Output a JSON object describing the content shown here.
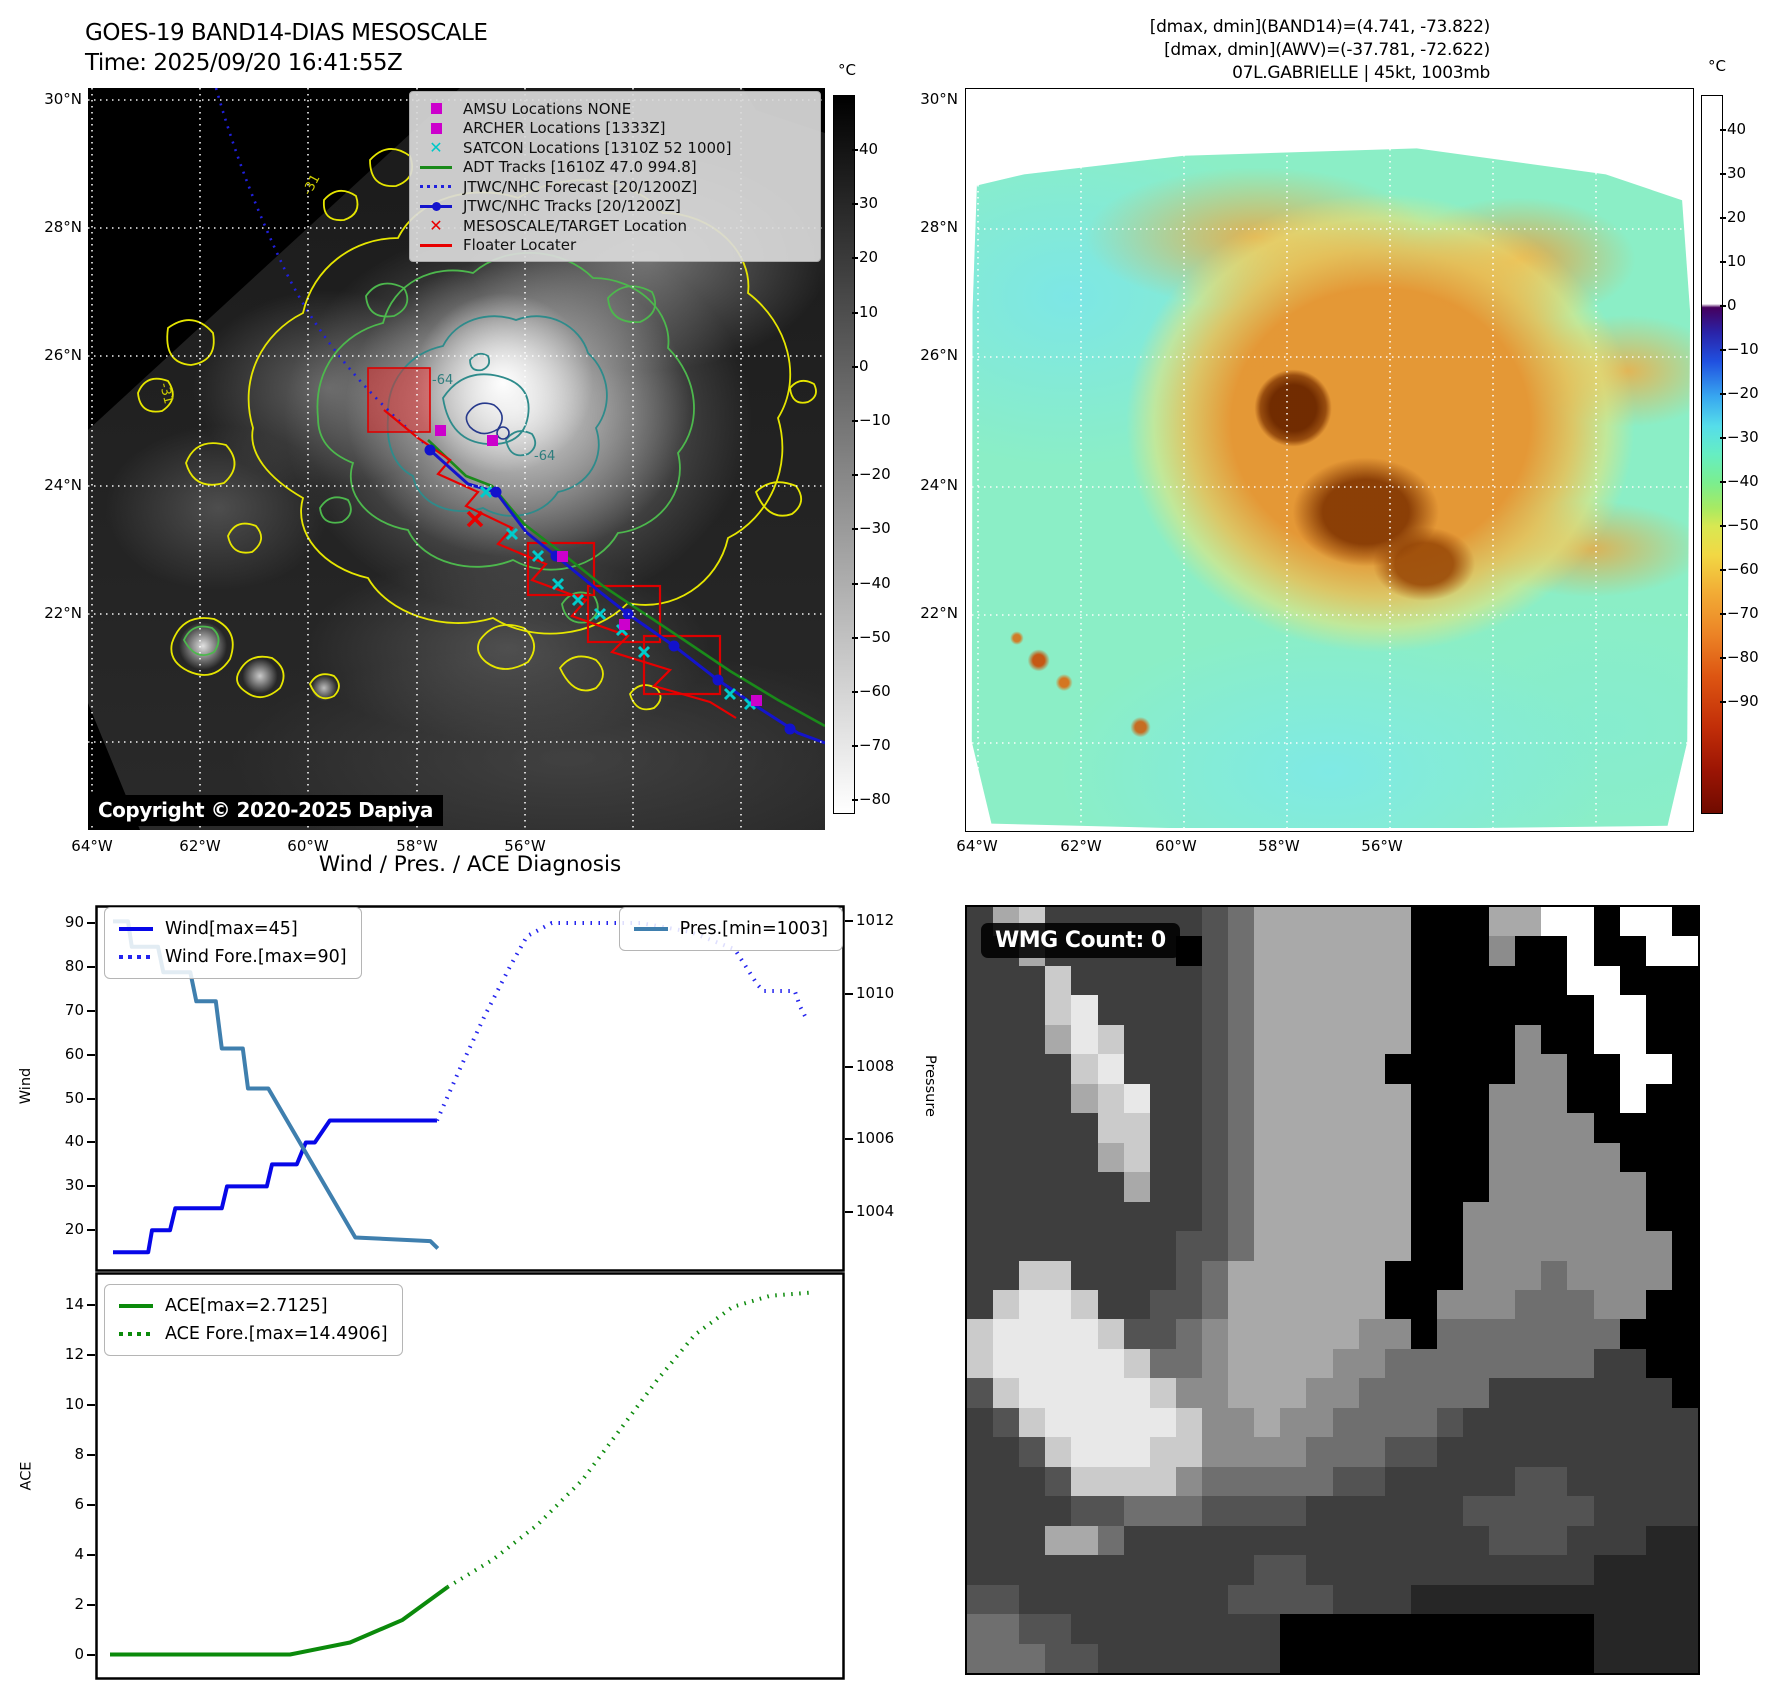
{
  "panel1": {
    "title_line1": "GOES-19 BAND14-DIAS MESOSCALE",
    "title_line2": "Time: 2025/09/20 16:41:55Z",
    "copyright": "Copyright © 2020-2025 Dapiya",
    "legend": [
      {
        "symbol": "square",
        "color": "#cc00cc",
        "label": "AMSU Locations NONE"
      },
      {
        "symbol": "square",
        "color": "#cc00cc",
        "label": "ARCHER Locations [1333Z]"
      },
      {
        "symbol": "cross",
        "color": "#00c8c8",
        "label": "SATCON Locations [1310Z 52 1000]"
      },
      {
        "symbol": "line",
        "color": "#1a8a1a",
        "label": "ADT Tracks [1610Z 47.0 994.8]"
      },
      {
        "symbol": "dotted",
        "color": "#2020dd",
        "label": "JTWC/NHC Forecast [20/1200Z]"
      },
      {
        "symbol": "line-dot",
        "color": "#1414cc",
        "label": "JTWC/NHC Tracks [20/1200Z]"
      },
      {
        "symbol": "cross",
        "color": "#e80000",
        "label": "MESOSCALE/TARGET Location"
      },
      {
        "symbol": "line",
        "color": "#e80000",
        "label": "Floater Locater"
      }
    ],
    "lat_labels": [
      "30°N",
      "28°N",
      "26°N",
      "24°N",
      "22°N"
    ],
    "lon_labels": [
      "64°W",
      "62°W",
      "60°W",
      "58°W",
      "56°W"
    ],
    "contour_labels": {
      "outer": "-31",
      "inner": "-64"
    },
    "colorbar": {
      "unit": "°C",
      "ticks": [
        "40",
        "30",
        "20",
        "10",
        "0",
        "−10",
        "−20",
        "−30",
        "−40",
        "−50",
        "−60",
        "−70",
        "−80"
      ],
      "gradient": [
        [
          "#000000",
          0
        ],
        [
          "#151515",
          8
        ],
        [
          "#f5f5f5",
          96
        ],
        [
          "#ffffff",
          100
        ]
      ]
    }
  },
  "panel2": {
    "annot_line1": "[dmax, dmin](BAND14)=(4.741, -73.822)",
    "annot_line2": "[dmax, dmin](AWV)=(-37.781, -72.622)",
    "annot_line3": "07L.GABRIELLE | 45kt, 1003mb",
    "lat_labels": [
      "30°N",
      "28°N",
      "26°N",
      "24°N",
      "22°N"
    ],
    "lon_labels": [
      "64°W",
      "62°W",
      "60°W",
      "58°W",
      "56°W"
    ],
    "colorbar": {
      "unit": "°C",
      "ticks": [
        "40",
        "30",
        "20",
        "10",
        "0",
        "−10",
        "−20",
        "−30",
        "−40",
        "−50",
        "−60",
        "−70",
        "−80",
        "−90"
      ],
      "gradient": [
        [
          "#ffffff",
          0
        ],
        [
          "#ffffff",
          29
        ],
        [
          "#45005e",
          29.5
        ],
        [
          "#2a23a8",
          33
        ],
        [
          "#2050e0",
          37
        ],
        [
          "#38a8f0",
          42
        ],
        [
          "#55ddea",
          46
        ],
        [
          "#66eec2",
          50
        ],
        [
          "#7bee8e",
          54
        ],
        [
          "#a8ea62",
          57.5
        ],
        [
          "#d8e852",
          60
        ],
        [
          "#f2d844",
          64
        ],
        [
          "#f2ae36",
          69
        ],
        [
          "#ec8426",
          75
        ],
        [
          "#dd5512",
          81
        ],
        [
          "#c22e08",
          88
        ],
        [
          "#9c1504",
          94
        ],
        [
          "#700b00",
          100
        ]
      ]
    }
  },
  "chart_data": [
    {
      "type": "line",
      "title": "Wind / Pres. / ACE Diagnosis",
      "ylabel_left": "Wind",
      "ylabel_right": "Pressure",
      "y_ticks_left": [
        90,
        80,
        70,
        60,
        50,
        40,
        30,
        20
      ],
      "y_ticks_right": [
        1012,
        1010,
        1008,
        1006,
        1004
      ],
      "ylim_left": [
        10.5,
        94.1
      ],
      "ylim_right": [
        1002.35,
        1012.45
      ],
      "xlim": [
        0,
        1
      ],
      "grid": false,
      "series": [
        {
          "name": "Wind[max=45]",
          "style": "solid",
          "color": "#0707e8",
          "axis": "left",
          "points": [
            [
              0.024,
              15
            ],
            [
              0.071,
              15
            ],
            [
              0.076,
              20
            ],
            [
              0.1,
              20
            ],
            [
              0.107,
              25
            ],
            [
              0.169,
              25
            ],
            [
              0.176,
              30
            ],
            [
              0.229,
              30
            ],
            [
              0.236,
              35
            ],
            [
              0.269,
              35
            ],
            [
              0.281,
              40
            ],
            [
              0.293,
              40
            ],
            [
              0.313,
              45
            ],
            [
              0.456,
              45
            ]
          ]
        },
        {
          "name": "Wind Fore.[max=90]",
          "style": "dotted",
          "color": "#2424ee",
          "axis": "left",
          "points": [
            [
              0.456,
              45
            ],
            [
              0.487,
              57
            ],
            [
              0.52,
              69
            ],
            [
              0.553,
              80
            ],
            [
              0.576,
              87
            ],
            [
              0.609,
              90
            ],
            [
              0.727,
              90
            ],
            [
              0.793,
              88
            ],
            [
              0.853,
              84
            ],
            [
              0.883,
              76
            ],
            [
              0.891,
              74.5
            ],
            [
              0.933,
              74.5
            ],
            [
              0.94,
              71
            ],
            [
              0.949,
              68
            ]
          ]
        },
        {
          "name": "Pres.[min=1003]",
          "style": "solid",
          "color": "#3f7fae",
          "axis": "right",
          "points": [
            [
              0.024,
              1012
            ],
            [
              0.044,
              1012
            ],
            [
              0.049,
              1011.3
            ],
            [
              0.084,
              1011.3
            ],
            [
              0.091,
              1010.6
            ],
            [
              0.127,
              1010.6
            ],
            [
              0.135,
              1009.8
            ],
            [
              0.161,
              1009.8
            ],
            [
              0.169,
              1008.5
            ],
            [
              0.197,
              1008.5
            ],
            [
              0.204,
              1007.4
            ],
            [
              0.231,
              1007.4
            ],
            [
              0.347,
              1003.3
            ],
            [
              0.447,
              1003.2
            ],
            [
              0.457,
              1003
            ]
          ]
        }
      ]
    },
    {
      "type": "line",
      "ylabel_left": "ACE",
      "y_ticks_left": [
        14,
        12,
        10,
        8,
        6,
        4,
        2,
        0
      ],
      "ylim_left": [
        -1.0,
        15.3
      ],
      "xlim": [
        0,
        1
      ],
      "grid": false,
      "series": [
        {
          "name": "ACE[max=2.7125]",
          "style": "solid",
          "color": "#0b8a0b",
          "axis": "left",
          "points": [
            [
              0.02,
              0.02
            ],
            [
              0.26,
              0.02
            ],
            [
              0.34,
              0.5
            ],
            [
              0.41,
              1.4
            ],
            [
              0.47,
              2.71
            ]
          ]
        },
        {
          "name": "ACE Fore.[max=14.4906]",
          "style": "dotted",
          "color": "#0b8a0b",
          "axis": "left",
          "points": [
            [
              0.47,
              2.71
            ],
            [
              0.53,
              3.8
            ],
            [
              0.59,
              5.2
            ],
            [
              0.65,
              7.0
            ],
            [
              0.7,
              9.0
            ],
            [
              0.75,
              11.0
            ],
            [
              0.8,
              12.8
            ],
            [
              0.85,
              13.9
            ],
            [
              0.9,
              14.35
            ],
            [
              0.96,
              14.49
            ]
          ]
        }
      ]
    }
  ],
  "wmg": {
    "count_label": "WMG Count: 0",
    "palette": {
      "k": "#000000",
      "1": "#262626",
      "2": "#3e3e3e",
      "3": "#535353",
      "4": "#6f6f6f",
      "5": "#8c8c8c",
      "6": "#a9a9a9",
      "7": "#cbcbcb",
      "8": "#e8e8e8",
      "w": "#ffffff"
    },
    "pixel_rows": [
      "26722222234666666kkk66wwkwwk",
      "22622222k34666666kkk5kkwkkww",
      "22272222234666666kkkkkkwwkkk",
      "22278222234666666kkkkkkkwwkk",
      "22268722234666666kkkk5kkwwkk",
      "2222782223466666kkkkk55kkwwk",
      "22226782234666666kkk555kkwkk",
      "22222772234666666kkk5555kkkk",
      "22222672234666666kkk55555kkk",
      "22222262234666666kkk555555kk",
      "22222222234666666kk5555555kk",
      "22222222334666666kk55555555k",
      "2277222234666666kkk55545555k",
      "2788722334666666kk55544455kk",
      "78888733456666655k4444444kkk",
      "78888874456666554444444422kk",
      "378888875566655444442222222k",
      "2378888875565544443222222222",
      "2237888775555444332222222222",
      "2223777754444433222223322222",
      "2222334443333222222333332222",
      "2226642222222222222233322211",
      "2222222222233222222222221111",
      "3322222222333322211111111111",
      "443322222222kkkkkkkkkkkk1111",
      "444332222222kkkkkkkkkkkk1111"
    ]
  }
}
